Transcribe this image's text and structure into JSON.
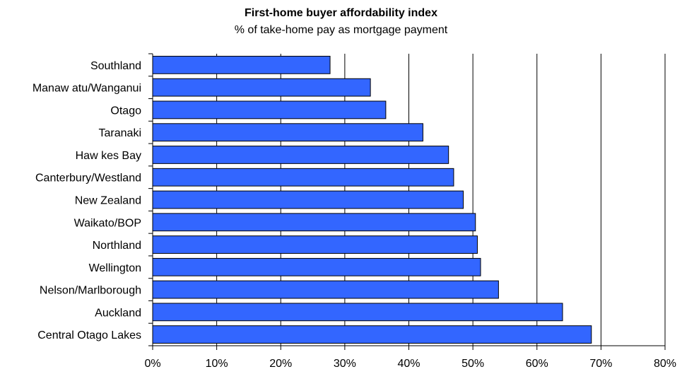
{
  "chart_data": {
    "type": "bar",
    "orientation": "horizontal",
    "title": "First-home buyer affordability index",
    "subtitle": "% of take-home pay as mortgage payment",
    "categories": [
      "Southland",
      "Manaw atu/Wanganui",
      "Otago",
      "Taranaki",
      "Haw kes Bay",
      "Canterbury/Westland",
      "New  Zealand",
      "Waikato/BOP",
      "Northland",
      "Wellington",
      "Nelson/Marlborough",
      "Auckland",
      "Central Otago Lakes"
    ],
    "values": [
      27.7,
      34.0,
      36.4,
      42.2,
      46.2,
      47.0,
      48.5,
      50.4,
      50.7,
      51.2,
      54.0,
      64.0,
      68.5
    ],
    "xlim": [
      0,
      80
    ],
    "xticks": [
      "0%",
      "10%",
      "20%",
      "30%",
      "40%",
      "50%",
      "60%",
      "70%",
      "80%"
    ],
    "grid": "vertical",
    "bar_color": "#3366FF",
    "bar_edge_color": "#000000"
  }
}
